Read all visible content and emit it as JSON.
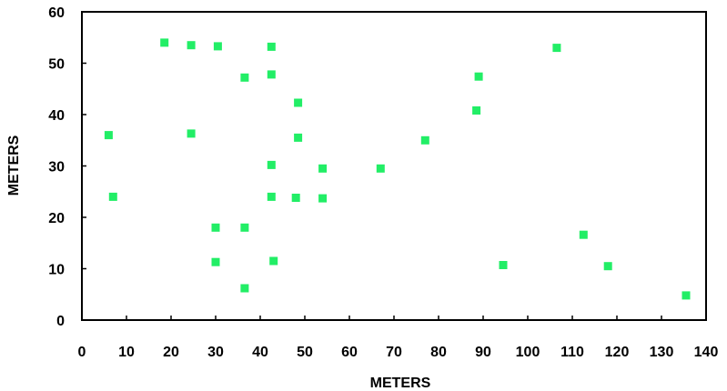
{
  "chart_data": {
    "type": "scatter",
    "title": "",
    "xlabel": "METERS",
    "ylabel": "METERS",
    "xlim": [
      0,
      140
    ],
    "ylim": [
      0,
      60
    ],
    "xticks": [
      "0",
      "10",
      "20",
      "30",
      "40",
      "50",
      "60",
      "70",
      "80",
      "90",
      "100",
      "110",
      "120",
      "130",
      "140"
    ],
    "yticks": [
      "0",
      "10",
      "20",
      "30",
      "40",
      "50",
      "60"
    ],
    "grid": false,
    "legend": "none",
    "marker": "square",
    "marker_color": "#22ee66",
    "series": [
      {
        "points": [
          [
            6,
            36
          ],
          [
            7,
            24
          ],
          [
            18.5,
            54
          ],
          [
            24.5,
            53.5
          ],
          [
            24.5,
            36.3
          ],
          [
            30.5,
            53.3
          ],
          [
            30,
            18
          ],
          [
            30,
            11.3
          ],
          [
            36.5,
            47.2
          ],
          [
            36.5,
            18
          ],
          [
            36.5,
            6.2
          ],
          [
            42.5,
            53.2
          ],
          [
            42.5,
            47.8
          ],
          [
            42.5,
            30.2
          ],
          [
            42.5,
            24
          ],
          [
            43,
            11.5
          ],
          [
            48,
            23.8
          ],
          [
            48.5,
            42.3
          ],
          [
            48.5,
            35.5
          ],
          [
            54,
            29.5
          ],
          [
            54,
            23.7
          ],
          [
            67,
            29.5
          ],
          [
            77,
            35
          ],
          [
            88.5,
            40.8
          ],
          [
            89,
            47.4
          ],
          [
            94.5,
            10.7
          ],
          [
            106.5,
            53
          ],
          [
            112.5,
            16.6
          ],
          [
            118,
            10.5
          ],
          [
            135.5,
            4.8
          ]
        ]
      }
    ]
  }
}
